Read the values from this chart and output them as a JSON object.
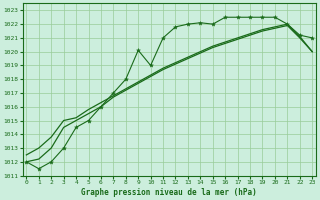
{
  "title": "Graphe pression niveau de la mer (hPa)",
  "bg_color": "#cceedd",
  "grid_color": "#99cc99",
  "line_color": "#1a6b1a",
  "marker_color": "#1a6b1a",
  "xlim": [
    -0.3,
    23.3
  ],
  "ylim": [
    1011,
    1023.5
  ],
  "yticks": [
    1011,
    1012,
    1013,
    1014,
    1015,
    1016,
    1017,
    1018,
    1019,
    1020,
    1021,
    1022,
    1023
  ],
  "xticks": [
    0,
    1,
    2,
    3,
    4,
    5,
    6,
    7,
    8,
    9,
    10,
    11,
    12,
    13,
    14,
    15,
    16,
    17,
    18,
    19,
    20,
    21,
    22,
    23
  ],
  "series1": [
    1012,
    1011.5,
    1012,
    1013,
    1014.5,
    1015,
    1016,
    1017,
    1018,
    1020.1,
    1019.0,
    1021.0,
    1021.8,
    1022.0,
    1022.1,
    1022.0,
    1022.5,
    1022.5,
    1022.5,
    1022.5,
    1022.5,
    1022.0,
    1021.2,
    1021.0
  ],
  "series2": [
    1012.0,
    1012.2,
    1013.0,
    1014.5,
    1015.0,
    1015.5,
    1016.0,
    1016.7,
    1017.2,
    1017.7,
    1018.2,
    1018.7,
    1019.1,
    1019.5,
    1019.9,
    1020.3,
    1020.6,
    1020.9,
    1021.2,
    1021.5,
    1021.7,
    1021.9,
    1021.0,
    1020.0
  ],
  "series3": [
    1012.5,
    1013.0,
    1013.8,
    1015.0,
    1015.2,
    1015.8,
    1016.3,
    1016.8,
    1017.3,
    1017.8,
    1018.3,
    1018.8,
    1019.2,
    1019.6,
    1020.0,
    1020.4,
    1020.7,
    1021.0,
    1021.3,
    1021.6,
    1021.8,
    1022.0,
    1021.1,
    1020.0
  ]
}
